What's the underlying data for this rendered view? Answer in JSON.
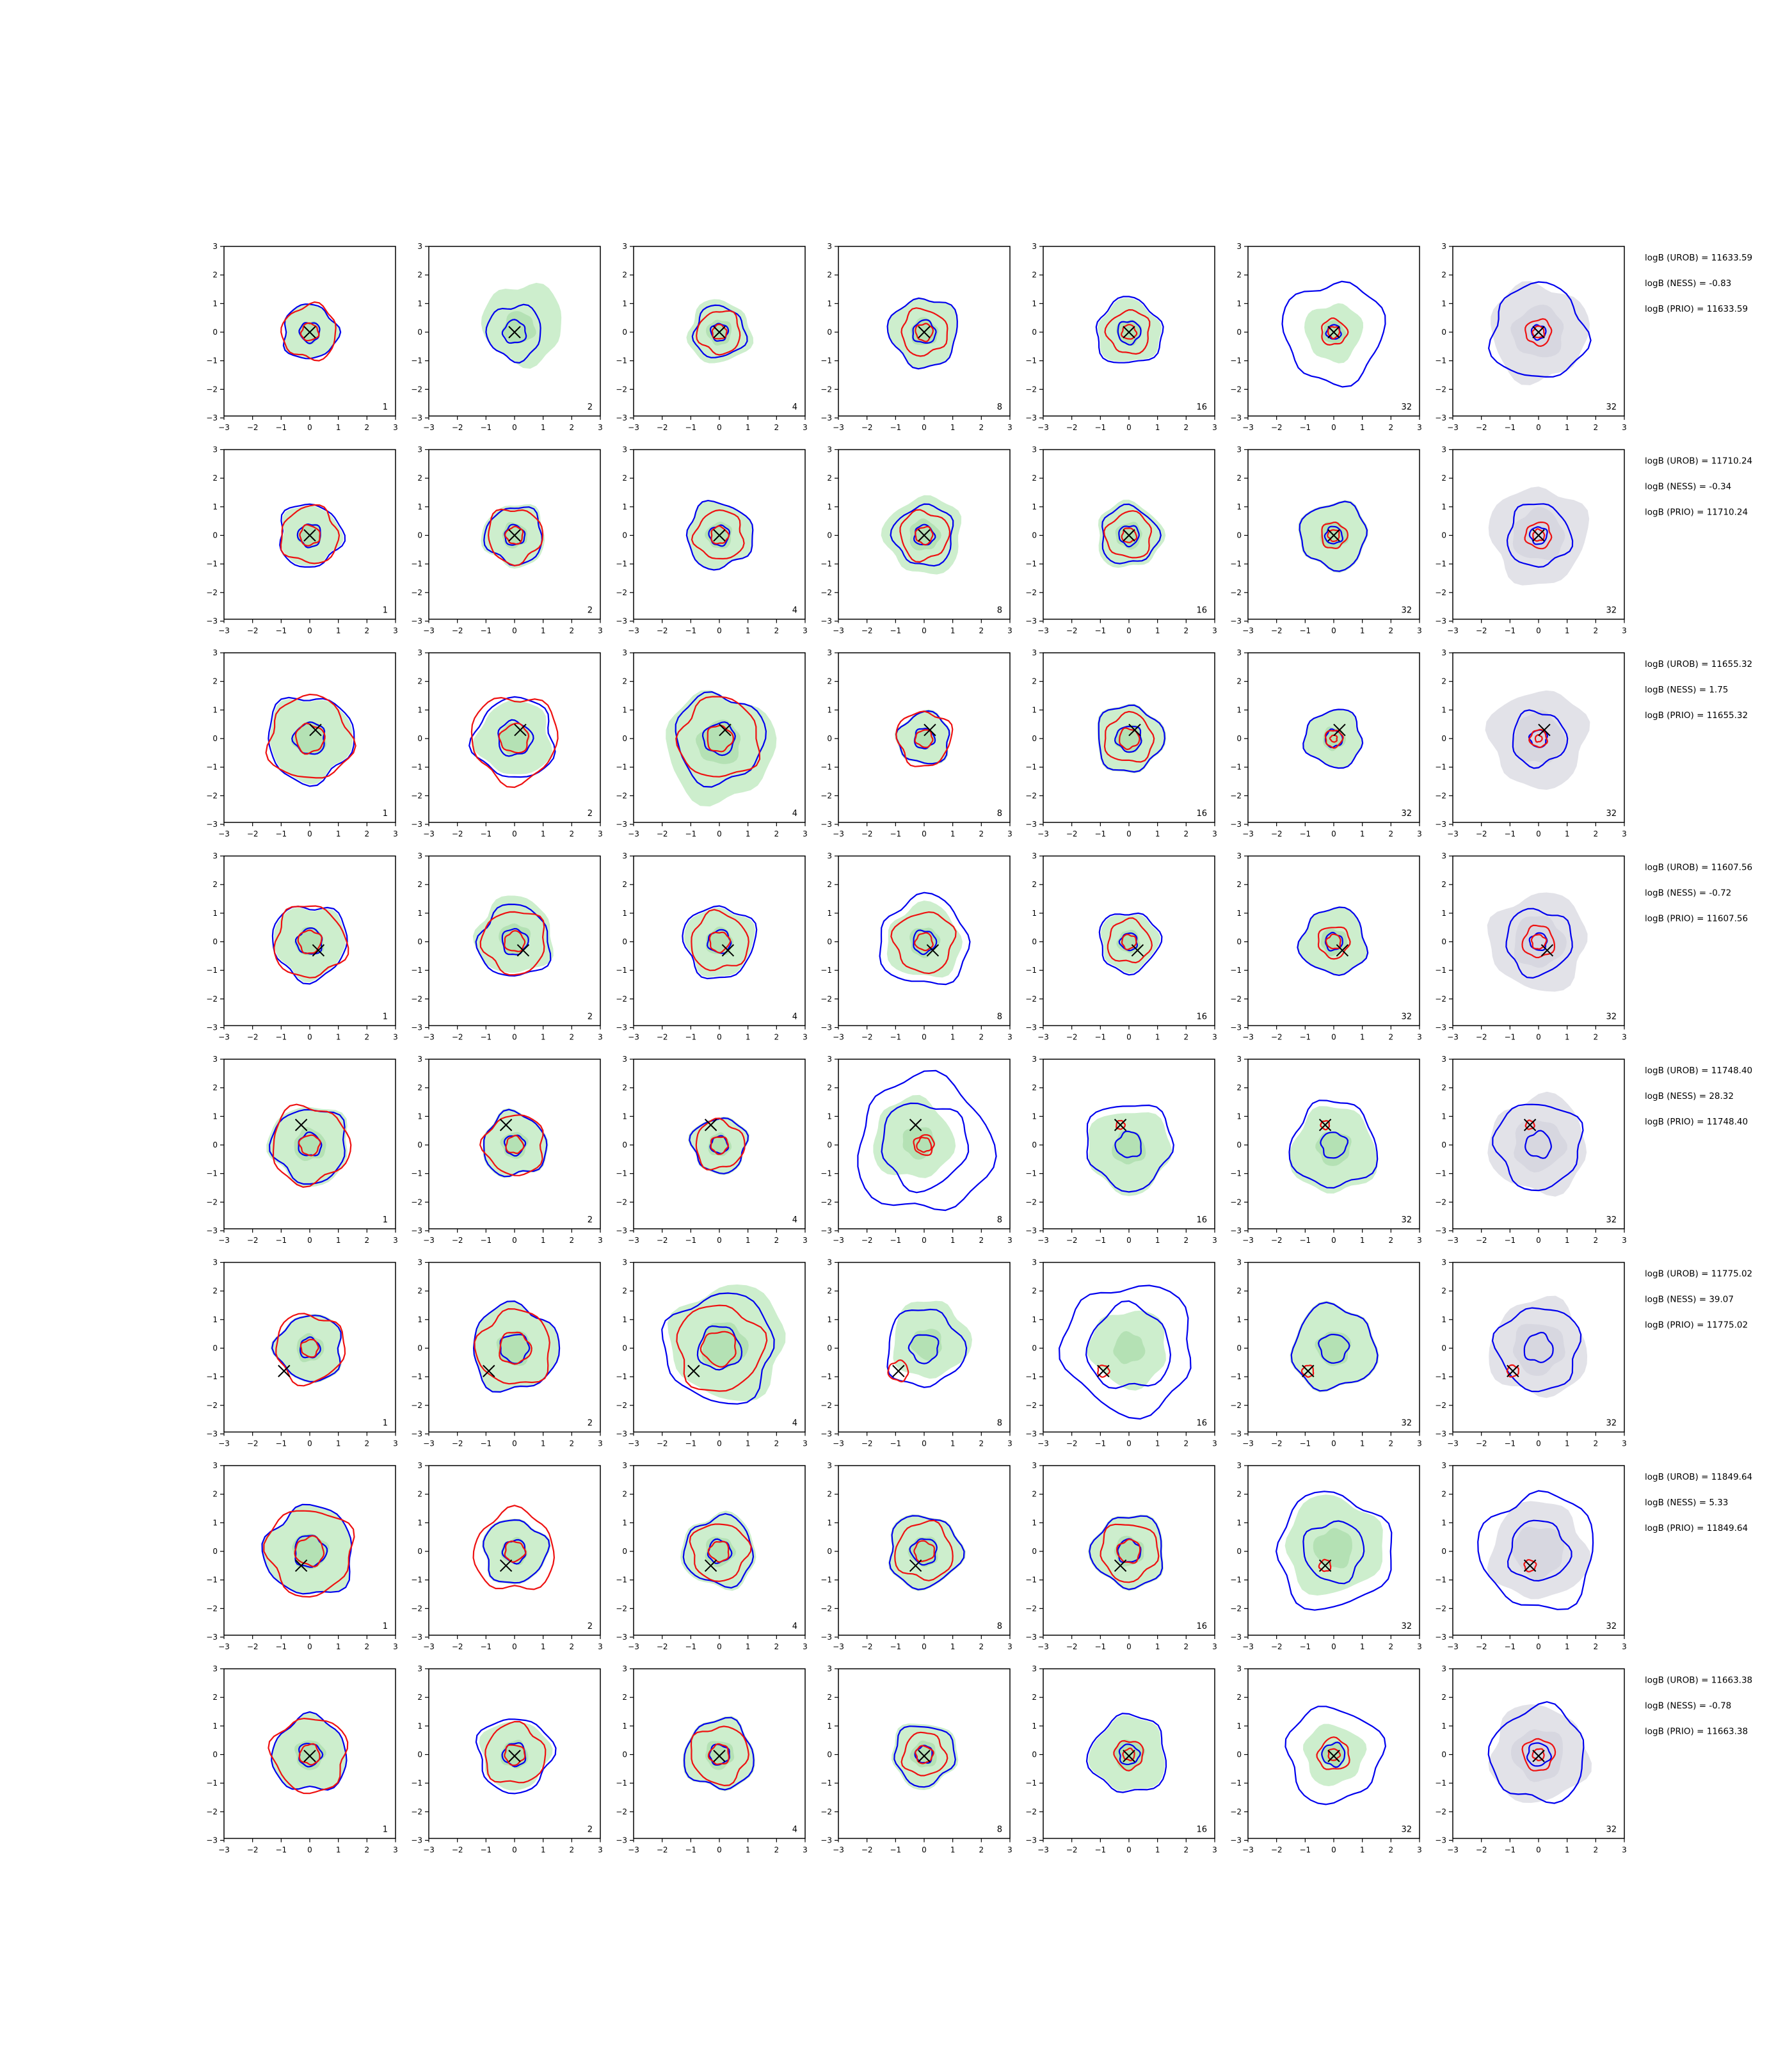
{
  "chart_data": {
    "type": "contour",
    "layout": "8 rows x 7 columns grid of 2D contour panels plus log-Bayes-factor annotations per row",
    "axes": {
      "xlim": [
        -3,
        3
      ],
      "ylim": [
        -3,
        3
      ],
      "ticks": [
        "−3",
        "−2",
        "−1",
        "0",
        "1",
        "2",
        "3"
      ]
    },
    "colors": {
      "reference_fill": "#cdeecd",
      "reference_fill_inner": "#a9dca9",
      "prior_fill": "#e2e2e8",
      "blue_contour": "#0000ee",
      "red_contour": "#ee1111",
      "marker": "#000000"
    },
    "column_labels": [
      "1",
      "2",
      "4",
      "8",
      "16",
      "32",
      "32"
    ],
    "rows": [
      {
        "truth": [
          0.0,
          0.0
        ],
        "logB_lines": [
          "logB (UROB) = 11633.59",
          "logB (NESS) = -0.83",
          "logB (PRIO) = 11633.59"
        ],
        "panels": [
          {
            "blue": [
              0.95,
              0.35
            ],
            "red": [
              0.95,
              0.3
            ],
            "green": 0.95,
            "green_center": [
              0,
              0
            ]
          },
          {
            "blue": [
              0.95,
              0.4
            ],
            "red": [],
            "green": 1.4,
            "green_center": [
              0.3,
              0.3
            ]
          },
          {
            "blue": [
              0.9,
              0.3
            ],
            "red": [
              0.75,
              0.25
            ],
            "green": 1.1,
            "green_center": [
              0,
              0
            ]
          },
          {
            "blue": [
              1.2,
              0.4
            ],
            "red": [
              0.8,
              0.3
            ],
            "green": 1.2,
            "green_center": [
              0,
              0
            ]
          },
          {
            "blue": [
              1.15,
              0.4
            ],
            "red": [
              0.75,
              0.25
            ],
            "green": 1.1,
            "green_center": [
              0,
              0
            ]
          },
          {
            "blue": [
              1.75,
              0.25
            ],
            "red": [
              0.45,
              0.2
            ],
            "green": 1.0,
            "green_center": [
              0,
              0
            ]
          },
          {
            "blue": [
              1.65,
              0.25
            ],
            "red": [
              0.45,
              0.2
            ],
            "green": 0,
            "prior": true
          }
        ]
      },
      {
        "truth": [
          0.0,
          0.0
        ],
        "logB_lines": [
          "logB (UROB) = 11710.24",
          "logB (NESS) = -0.34",
          "logB (PRIO) = 11710.24"
        ],
        "panels": [
          {
            "blue": [
              1.1,
              0.4
            ],
            "red": [
              1.0,
              0.35
            ],
            "green": 1.05,
            "green_center": [
              0,
              0
            ]
          },
          {
            "blue": [
              1.0,
              0.35
            ],
            "red": [
              0.95,
              0.3
            ],
            "green": 1.1,
            "green_center": [
              0,
              0
            ]
          },
          {
            "blue": [
              1.15,
              0.35
            ],
            "red": [
              0.85,
              0.3
            ],
            "green": 1.15,
            "green_center": [
              0,
              0
            ]
          },
          {
            "blue": [
              1.05,
              0.35
            ],
            "red": [
              0.85,
              0.3
            ],
            "green": 1.35,
            "green_center": [
              0,
              0
            ]
          },
          {
            "blue": [
              1.0,
              0.35
            ],
            "red": [
              0.8,
              0.25
            ],
            "green": 1.15,
            "green_center": [
              0,
              0
            ]
          },
          {
            "blue": [
              1.15,
              0.3
            ],
            "red": [
              0.45,
              0.2
            ],
            "green": 1.2,
            "green_center": [
              0,
              0
            ]
          },
          {
            "blue": [
              1.1,
              0.3
            ],
            "red": [
              0.45,
              0.2
            ],
            "green": 0,
            "prior": true
          }
        ]
      },
      {
        "truth": [
          0.2,
          0.3
        ],
        "logB_lines": [
          "logB (UROB) = 11655.32",
          "logB (NESS) = 1.75",
          "logB (PRIO) = 11655.32"
        ],
        "panels": [
          {
            "blue": [
              1.5,
              0.55
            ],
            "red": [
              1.45,
              0.5
            ],
            "green": 1.45,
            "green_center": [
              0,
              0
            ]
          },
          {
            "blue": [
              1.4,
              0.6
            ],
            "red": [
              1.5,
              0.5
            ],
            "green": 1.3,
            "green_center": [
              0,
              0
            ]
          },
          {
            "blue": [
              1.55,
              0.55
            ],
            "red": [
              1.4,
              0.45
            ],
            "green": 1.9,
            "green_center": [
              0,
              -0.3
            ]
          },
          {
            "blue": [
              0.9,
              0.35
            ],
            "red": [
              0.95,
              0.3
            ],
            "green": 0.95,
            "green_center": [
              0,
              0
            ]
          },
          {
            "blue": [
              1.15,
              0.45
            ],
            "red": [
              0.85,
              0.35
            ],
            "green": 1.2,
            "green_center": [
              0,
              0
            ]
          },
          {
            "blue": [
              1.0,
              0.3
            ],
            "red": [
              0.3,
              0.12
            ],
            "green": 1.0,
            "green_center": [
              0,
              0
            ]
          },
          {
            "blue": [
              0.95,
              0.3
            ],
            "red": [
              0.3,
              0.12
            ],
            "green": 0,
            "prior": true
          }
        ]
      },
      {
        "truth": [
          0.3,
          -0.3
        ],
        "logB_lines": [
          "logB (UROB) = 11607.56",
          "logB (NESS) = -0.72",
          "logB (PRIO) = 11607.56"
        ],
        "panels": [
          {
            "blue": [
              1.3,
              0.45
            ],
            "red": [
              1.25,
              0.4
            ],
            "green": 1.25,
            "green_center": [
              0,
              0
            ]
          },
          {
            "blue": [
              1.25,
              0.45
            ],
            "red": [
              1.1,
              0.35
            ],
            "green": 1.35,
            "green_center": [
              0,
              0.2
            ]
          },
          {
            "blue": [
              1.25,
              0.4
            ],
            "red": [
              1.0,
              0.35
            ],
            "green": 1.2,
            "green_center": [
              0,
              0
            ]
          },
          {
            "blue": [
              1.55,
              0.4
            ],
            "red": [
              1.05,
              0.3
            ],
            "green": 1.3,
            "green_center": [
              0,
              0
            ]
          },
          {
            "blue": [
              1.05,
              0.3
            ],
            "red": [
              0.75,
              0.25
            ],
            "green": 1.0,
            "green_center": [
              0,
              0
            ]
          },
          {
            "blue": [
              1.15,
              0.3
            ],
            "red": [
              0.55,
              0.25
            ],
            "green": 1.15,
            "green_center": [
              0,
              0
            ]
          },
          {
            "blue": [
              1.15,
              0.3
            ],
            "red": [
              0.55,
              0.25
            ],
            "green": 0,
            "prior": true
          }
        ]
      },
      {
        "truth": [
          -0.3,
          0.7
        ],
        "logB_lines": [
          "logB (UROB) = 11748.40",
          "logB (NESS) = 28.32",
          "logB (PRIO) = 11748.40"
        ],
        "panels": [
          {
            "blue": [
              1.3,
              0.4
            ],
            "red": [
              1.35,
              0.35
            ],
            "green": 1.4,
            "green_center": [
              0,
              0
            ]
          },
          {
            "blue": [
              1.1,
              0.35
            ],
            "red": [
              1.05,
              0.3
            ],
            "green": 1.15,
            "green_center": [
              0,
              0
            ]
          },
          {
            "blue": [
              0.95,
              0.3
            ],
            "red": [
              0.85,
              0.3
            ],
            "green": 1.0,
            "green_center": [
              0,
              0
            ]
          },
          {
            "blue": [
              2.35,
              1.5
            ],
            "red": [
              0.35,
              0.25
            ],
            "green": 1.4,
            "green_center": [
              -0.4,
              0.2
            ]
          },
          {
            "blue": [
              1.5,
              0.45
            ],
            "red": [
              0.15
            ],
            "green": 1.45,
            "green_center": [
              0,
              -0.2
            ]
          },
          {
            "blue": [
              1.5,
              0.45
            ],
            "red": [
              0.15
            ],
            "green": 1.5,
            "green_center": [
              0,
              -0.2
            ]
          },
          {
            "blue": [
              1.5,
              0.45
            ],
            "red": [
              0.15
            ],
            "green": 0,
            "prior": true
          }
        ]
      },
      {
        "truth": [
          -0.9,
          -0.8
        ],
        "logB_lines": [
          "logB (UROB) = 11775.02",
          "logB (NESS) = 39.07",
          "logB (PRIO) = 11775.02"
        ],
        "panels": [
          {
            "blue": [
              1.15,
              0.35
            ],
            "red": [
              1.2,
              0.3
            ],
            "green": 1.2,
            "green_center": [
              0,
              0
            ]
          },
          {
            "blue": [
              1.5,
              0.5
            ],
            "red": [
              1.3,
              0.55
            ],
            "green": 1.5,
            "green_center": [
              0,
              0
            ]
          },
          {
            "blue": [
              1.9,
              0.75
            ],
            "red": [
              1.5,
              0.6
            ],
            "green": 2.0,
            "green_center": [
              0.3,
              0.2
            ]
          },
          {
            "blue": [
              1.35,
              0.5
            ],
            "red": [
              0.35
            ],
            "green": 1.35,
            "green_center": [
              0.2,
              0.3
            ]
          },
          {
            "blue": [
              2.25,
              1.45
            ],
            "red": [
              0.2
            ],
            "green": 1.35,
            "green_center": [
              0,
              0
            ]
          },
          {
            "blue": [
              1.45,
              0.5
            ],
            "red": [
              0.2
            ],
            "green": 1.5,
            "green_center": [
              0,
              0
            ]
          },
          {
            "blue": [
              1.45,
              0.5
            ],
            "red": [
              0.2
            ],
            "green": 0,
            "prior": true
          }
        ]
      },
      {
        "truth": [
          -0.3,
          -0.5
        ],
        "logB_lines": [
          "logB (UROB) = 11849.64",
          "logB (NESS) = 5.33",
          "logB (PRIO) = 11849.64"
        ],
        "panels": [
          {
            "blue": [
              1.55,
              0.55
            ],
            "red": [
              1.5,
              0.5
            ],
            "green": 1.55,
            "green_center": [
              0,
              0
            ]
          },
          {
            "blue": [
              1.1,
              0.4
            ],
            "red": [
              1.4,
              0.35
            ],
            "green": 1.15,
            "green_center": [
              0,
              0
            ]
          },
          {
            "blue": [
              1.2,
              0.4
            ],
            "red": [
              1.0,
              0.35
            ],
            "green": 1.3,
            "green_center": [
              0,
              0
            ]
          },
          {
            "blue": [
              1.25,
              0.45
            ],
            "red": [
              1.0,
              0.35
            ],
            "green": 1.3,
            "green_center": [
              0,
              0
            ]
          },
          {
            "blue": [
              1.25,
              0.4
            ],
            "red": [
              1.0,
              0.4
            ],
            "green": 1.3,
            "green_center": [
              0,
              0
            ]
          },
          {
            "blue": [
              2.0,
              1.05
            ],
            "red": [
              0.2
            ],
            "green": 1.7,
            "green_center": [
              0,
              0.2
            ]
          },
          {
            "blue": [
              2.0,
              1.05
            ],
            "red": [
              0.2
            ],
            "green": 0,
            "prior": true
          }
        ]
      },
      {
        "truth": [
          0.0,
          -0.05
        ],
        "logB_lines": [
          "logB (UROB) = 11663.38",
          "logB (NESS) = -0.78",
          "logB (PRIO) = 11663.38"
        ],
        "panels": [
          {
            "blue": [
              1.3,
              0.4
            ],
            "red": [
              1.3,
              0.35
            ],
            "green": 1.3,
            "green_center": [
              0,
              0
            ]
          },
          {
            "blue": [
              1.3,
              0.4
            ],
            "red": [
              1.05,
              0.35
            ],
            "green": 1.2,
            "green_center": [
              0,
              0
            ]
          },
          {
            "blue": [
              1.2,
              0.35
            ],
            "red": [
              1.0,
              0.35
            ],
            "green": 1.25,
            "green_center": [
              0,
              0
            ]
          },
          {
            "blue": [
              1.05,
              0.3
            ],
            "red": [
              0.75,
              0.3
            ],
            "green": 1.15,
            "green_center": [
              0,
              0
            ]
          },
          {
            "blue": [
              1.35,
              0.35
            ],
            "red": [
              0.5,
              0.2
            ],
            "green": 1.3,
            "green_center": [
              0,
              0
            ]
          },
          {
            "blue": [
              1.65,
              0.4
            ],
            "red": [
              0.55,
              0.2
            ],
            "green": 1.05,
            "green_center": [
              0,
              0
            ]
          },
          {
            "blue": [
              1.65,
              0.4
            ],
            "red": [
              0.55,
              0.2
            ],
            "green": 0,
            "prior": true
          }
        ]
      }
    ]
  }
}
